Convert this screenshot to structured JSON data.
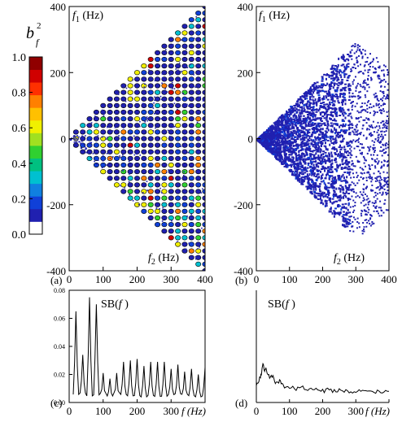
{
  "figure": {
    "colorbar": {
      "label_base": "b",
      "label_sup": "2",
      "label_sub": "f",
      "ticks": [
        "1.0",
        "0.8",
        "0.6",
        "0.4",
        "0.2",
        "0.0"
      ],
      "colors": [
        "#ffffff",
        "#2020b0",
        "#1040d8",
        "#1080e0",
        "#00c0d0",
        "#00c080",
        "#30d030",
        "#a0e020",
        "#f0f000",
        "#ffc000",
        "#ff8000",
        "#ff3000",
        "#d00000",
        "#900000"
      ]
    }
  },
  "chart_data": [
    {
      "panel": "(a)",
      "type": "heatmap",
      "description_visible": "bicoherence map",
      "xlabel": "f (Hz)",
      "ylabel_top": "f1 (Hz)",
      "ylabel_bottom": "f2 (Hz)",
      "xlim": [
        0,
        400
      ],
      "ylim": [
        -400,
        400
      ],
      "xticks": [
        "0",
        "100",
        "200",
        "300",
        "400"
      ],
      "yticks": [
        "400",
        "200",
        "0",
        "-200",
        "-400"
      ],
      "pattern": "periodic",
      "grid_spacing_hz": 20
    },
    {
      "panel": "(b)",
      "type": "heatmap",
      "xlabel": "f (Hz)",
      "ylabel_top": "f1 (Hz)",
      "ylabel_bottom": "f2 (Hz)",
      "xlim": [
        0,
        400
      ],
      "ylim": [
        -400,
        400
      ],
      "xticks": [
        "0",
        "100",
        "200",
        "300",
        "400"
      ],
      "yticks": [
        "400",
        "200",
        "0",
        "-200",
        "-400"
      ],
      "pattern": "noise"
    },
    {
      "panel": "(c)",
      "type": "line",
      "title": "SB(f)",
      "xlabel": "f (Hz)",
      "xlim": [
        0,
        400
      ],
      "ylim": [
        0,
        0.08
      ],
      "xticks": [
        "0",
        "100",
        "200",
        "300",
        "f (Hz)"
      ],
      "yticks": [
        "0.08",
        "0.06",
        "0.04",
        "0.02",
        "0.00"
      ],
      "peaks": [
        {
          "f": 20,
          "v": 0.065
        },
        {
          "f": 40,
          "v": 0.034
        },
        {
          "f": 60,
          "v": 0.075
        },
        {
          "f": 80,
          "v": 0.07
        },
        {
          "f": 100,
          "v": 0.021
        },
        {
          "f": 120,
          "v": 0.017
        },
        {
          "f": 140,
          "v": 0.021
        },
        {
          "f": 160,
          "v": 0.029
        },
        {
          "f": 180,
          "v": 0.03
        },
        {
          "f": 200,
          "v": 0.031
        },
        {
          "f": 220,
          "v": 0.026
        },
        {
          "f": 240,
          "v": 0.029
        },
        {
          "f": 260,
          "v": 0.029
        },
        {
          "f": 280,
          "v": 0.029
        },
        {
          "f": 300,
          "v": 0.024
        },
        {
          "f": 320,
          "v": 0.027
        },
        {
          "f": 340,
          "v": 0.022
        },
        {
          "f": 360,
          "v": 0.024
        },
        {
          "f": 380,
          "v": 0.02
        },
        {
          "f": 400,
          "v": 0.025
        }
      ]
    },
    {
      "panel": "(d)",
      "type": "line",
      "title": "SB(f)",
      "xlabel": "f (Hz)",
      "xlim": [
        0,
        400
      ],
      "ylim": [
        0,
        0.08
      ],
      "xticks": [
        "0",
        "100",
        "200",
        "300",
        "f (Hz)"
      ],
      "points": [
        [
          0,
          0.012
        ],
        [
          10,
          0.017
        ],
        [
          15,
          0.02
        ],
        [
          20,
          0.028
        ],
        [
          25,
          0.022
        ],
        [
          30,
          0.024
        ],
        [
          40,
          0.017
        ],
        [
          50,
          0.019
        ],
        [
          60,
          0.013
        ],
        [
          70,
          0.016
        ],
        [
          80,
          0.012
        ],
        [
          100,
          0.011
        ],
        [
          120,
          0.01
        ],
        [
          140,
          0.011
        ],
        [
          160,
          0.009
        ],
        [
          180,
          0.01
        ],
        [
          200,
          0.008
        ],
        [
          220,
          0.009
        ],
        [
          240,
          0.008
        ],
        [
          260,
          0.009
        ],
        [
          280,
          0.008
        ],
        [
          300,
          0.008
        ],
        [
          320,
          0.009
        ],
        [
          340,
          0.007
        ],
        [
          360,
          0.008
        ],
        [
          380,
          0.007
        ],
        [
          400,
          0.008
        ]
      ]
    }
  ]
}
